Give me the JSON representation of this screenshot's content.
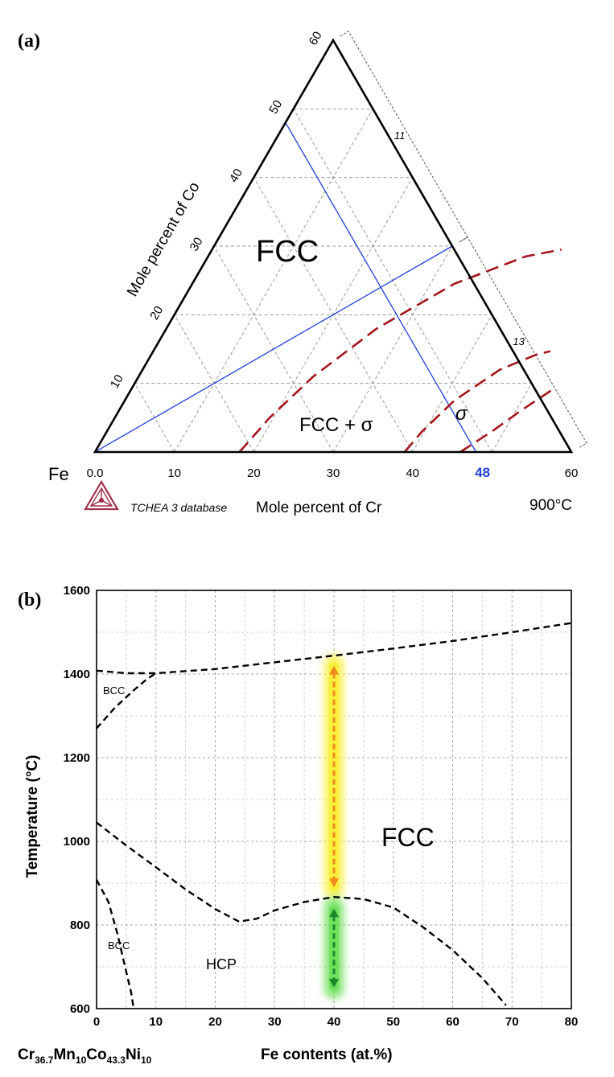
{
  "chart_data": [
    {
      "panel_label": "(a)",
      "type": "ternary",
      "corner_label": "Fe",
      "xlabel": "Mole percent of Cr",
      "ylabel": "Mole percent of Co",
      "x_ticks": [
        "0.0",
        "10",
        "20",
        "30",
        "40",
        "60"
      ],
      "x_highlight_tick": "48",
      "y_ticks": [
        "10",
        "20",
        "30",
        "40",
        "50",
        "60"
      ],
      "range": [
        0,
        60
      ],
      "grid": true,
      "database_label": "TCHEA 3 database",
      "temperature_label": "900°C",
      "region_labels": [
        "FCC",
        "FCC + σ",
        "σ"
      ],
      "bracket_labels": [
        "11",
        "13"
      ],
      "blue_lines": [
        {
          "from": {
            "cr": 0,
            "co": 0
          },
          "to": {
            "cr": 30,
            "co": 30
          }
        },
        {
          "from": {
            "cr": 48,
            "co": 0
          },
          "to": {
            "cr": 0,
            "co": 48
          }
        }
      ],
      "phase_boundaries": [
        {
          "points": [
            {
              "cr": 18.2,
              "co": 0
            },
            {
              "cr": 19.5,
              "co": 5
            },
            {
              "cr": 22,
              "co": 11
            },
            {
              "cr": 26.5,
              "co": 18
            },
            {
              "cr": 33,
              "co": 24.5
            },
            {
              "cr": 40,
              "co": 28.5
            },
            {
              "cr": 44,
              "co": 29.5
            }
          ]
        },
        {
          "points": [
            {
              "cr": 39,
              "co": 0
            },
            {
              "cr": 39.7,
              "co": 3
            },
            {
              "cr": 41.5,
              "co": 7.5
            },
            {
              "cr": 45,
              "co": 12
            },
            {
              "cr": 48.5,
              "co": 14.2
            },
            {
              "cr": 50,
              "co": 14.7
            }
          ]
        },
        {
          "points": [
            {
              "cr": 46,
              "co": 0
            },
            {
              "cr": 48.5,
              "co": 3
            },
            {
              "cr": 50.6,
              "co": 6
            },
            {
              "cr": 53,
              "co": 9
            }
          ]
        }
      ]
    },
    {
      "panel_label": "(b)",
      "type": "line",
      "xlabel": "Fe contents (at.%)",
      "ylabel": "Temperature (°C)",
      "composition_label": {
        "base": "Cr",
        "s1": "36.7",
        "e2": "Mn",
        "s2": "10",
        "e3": "Co",
        "s3": "43.3",
        "e4": "Ni",
        "s4": "10"
      },
      "xlim": [
        0,
        80
      ],
      "ylim": [
        600,
        1600
      ],
      "x_ticks": [
        "0",
        "10",
        "20",
        "30",
        "40",
        "50",
        "60",
        "70",
        "80"
      ],
      "y_ticks": [
        "600",
        "800",
        "1000",
        "1200",
        "1400",
        "1600"
      ],
      "grid": true,
      "region_labels": [
        "BCC",
        "BCC",
        "FCC",
        "HCP"
      ],
      "series": [
        {
          "points": [
            [
              0,
              1408
            ],
            [
              5,
              1402
            ],
            [
              10,
              1402
            ],
            [
              20,
              1412
            ],
            [
              30,
              1428
            ],
            [
              40,
              1444
            ],
            [
              50,
              1461
            ],
            [
              60,
              1479
            ],
            [
              70,
              1500
            ],
            [
              80,
              1522
            ]
          ]
        },
        {
          "points": [
            [
              0,
              1270
            ],
            [
              3,
              1318
            ],
            [
              6,
              1358
            ],
            [
              8.5,
              1388
            ],
            [
              10,
              1402
            ]
          ]
        },
        {
          "points": [
            [
              0,
              1045
            ],
            [
              5,
              990
            ],
            [
              10,
              938
            ],
            [
              15,
              885
            ],
            [
              20,
              838
            ],
            [
              24,
              808
            ],
            [
              27,
              815
            ],
            [
              30,
              835
            ],
            [
              35,
              855
            ],
            [
              40,
              867
            ],
            [
              45,
              862
            ],
            [
              50,
              842
            ],
            [
              55,
              795
            ],
            [
              60,
              740
            ],
            [
              65,
              673
            ],
            [
              69,
              608
            ]
          ]
        },
        {
          "points": [
            [
              0,
              908
            ],
            [
              2,
              855
            ],
            [
              3.5,
              780
            ],
            [
              4.8,
              700
            ],
            [
              5.8,
              640
            ],
            [
              6.2,
              605
            ]
          ]
        }
      ],
      "arrows": [
        {
          "x": 40,
          "y_from": 890,
          "y_to": 1420,
          "color": "#f08a1c",
          "glow": "#f7ef3a"
        },
        {
          "x": 40,
          "y_from": 650,
          "y_to": 840,
          "color": "#1d8a2a",
          "glow": "#6ee05a"
        }
      ]
    }
  ]
}
